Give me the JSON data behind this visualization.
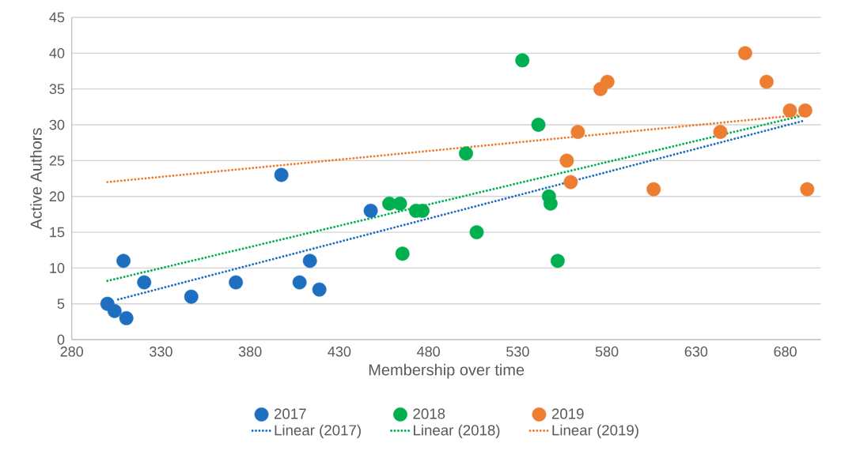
{
  "chart_data": {
    "type": "scatter",
    "xlabel": "Membership over time",
    "ylabel": "Active Authors",
    "xlim": [
      280,
      700
    ],
    "ylim": [
      0,
      45
    ],
    "xticks": [
      280,
      330,
      380,
      430,
      480,
      530,
      580,
      630,
      680
    ],
    "yticks": [
      0,
      5,
      10,
      15,
      20,
      25,
      30,
      35,
      40,
      45
    ],
    "grid": "y",
    "legend": "bottom",
    "series": [
      {
        "name": "2017",
        "color": "#1f6fc0",
        "marker": "circle",
        "x": [
          300,
          304,
          310.6,
          309,
          320.6,
          347,
          372,
          397.5,
          407.7,
          413.5,
          418.8,
          447.6
        ],
        "values": [
          5,
          4,
          3,
          11,
          8,
          6,
          8,
          23,
          8,
          11,
          7,
          18
        ]
      },
      {
        "name": "2018",
        "color": "#00b050",
        "marker": "circle",
        "x": [
          532.6,
          541.6,
          501,
          458,
          464,
          473,
          476.6,
          465.4,
          507,
          547.5,
          548.4,
          552.4
        ],
        "values": [
          39,
          30,
          26,
          19,
          19,
          18,
          18,
          12,
          15,
          20,
          19,
          11
        ]
      },
      {
        "name": "2019",
        "color": "#ed7d31",
        "marker": "circle",
        "x": [
          657.5,
          669.5,
          580.3,
          576.4,
          682.6,
          691.2,
          563.7,
          643.6,
          557.5,
          559.7,
          606.2,
          692.3
        ],
        "values": [
          40,
          36,
          36,
          35,
          32,
          32,
          29,
          29,
          25,
          22,
          21,
          21
        ]
      },
      {
        "name": "Linear (2017)",
        "type": "line",
        "line_style": "dotted",
        "color": "#1f6fc0",
        "x": [
          306,
          691
        ],
        "values": [
          5.6,
          30.6
        ]
      },
      {
        "name": "Linear (2018)",
        "type": "line",
        "line_style": "dotted",
        "color": "#00b050",
        "x": [
          300,
          690
        ],
        "values": [
          8.2,
          31.3
        ]
      },
      {
        "name": "Linear (2019)",
        "type": "line",
        "line_style": "dotted",
        "color": "#ed7d31",
        "x": [
          300,
          690
        ],
        "values": [
          22,
          31.4
        ]
      }
    ]
  }
}
